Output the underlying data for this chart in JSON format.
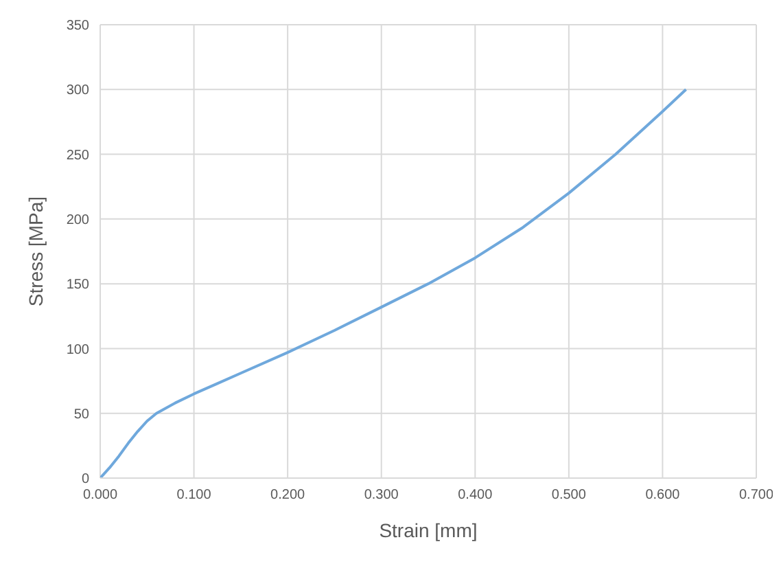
{
  "chart_data": {
    "type": "line",
    "xlabel": "Strain [mm]",
    "ylabel": "Stress [MPa]",
    "x": [
      0,
      0.01,
      0.02,
      0.03,
      0.04,
      0.05,
      0.06,
      0.08,
      0.1,
      0.125,
      0.15,
      0.2,
      0.25,
      0.3,
      0.35,
      0.4,
      0.45,
      0.5,
      0.55,
      0.6,
      0.625
    ],
    "series": [
      {
        "color": "#6fa8dc",
        "values": [
          0,
          8,
          17,
          27,
          36,
          44,
          50,
          58,
          65,
          73,
          81,
          97,
          114,
          132,
          150,
          170,
          193,
          220,
          250,
          283,
          300
        ]
      }
    ],
    "xlim": [
      0,
      0.7
    ],
    "xticks": [
      {
        "value": 0,
        "label": "0.000"
      },
      {
        "value": 0.1,
        "label": "0.100"
      },
      {
        "value": 0.2,
        "label": "0.200"
      },
      {
        "value": 0.3,
        "label": "0.300"
      },
      {
        "value": 0.4,
        "label": "0.400"
      },
      {
        "value": 0.5,
        "label": "0.500"
      },
      {
        "value": 0.6,
        "label": "0.600"
      },
      {
        "value": 0.7,
        "label": "0.700"
      }
    ],
    "ylim": [
      0,
      350
    ],
    "yticks": [
      0,
      50,
      100,
      150,
      200,
      250,
      300,
      350
    ],
    "grid": true,
    "marker": "none",
    "line_style": "solid"
  }
}
